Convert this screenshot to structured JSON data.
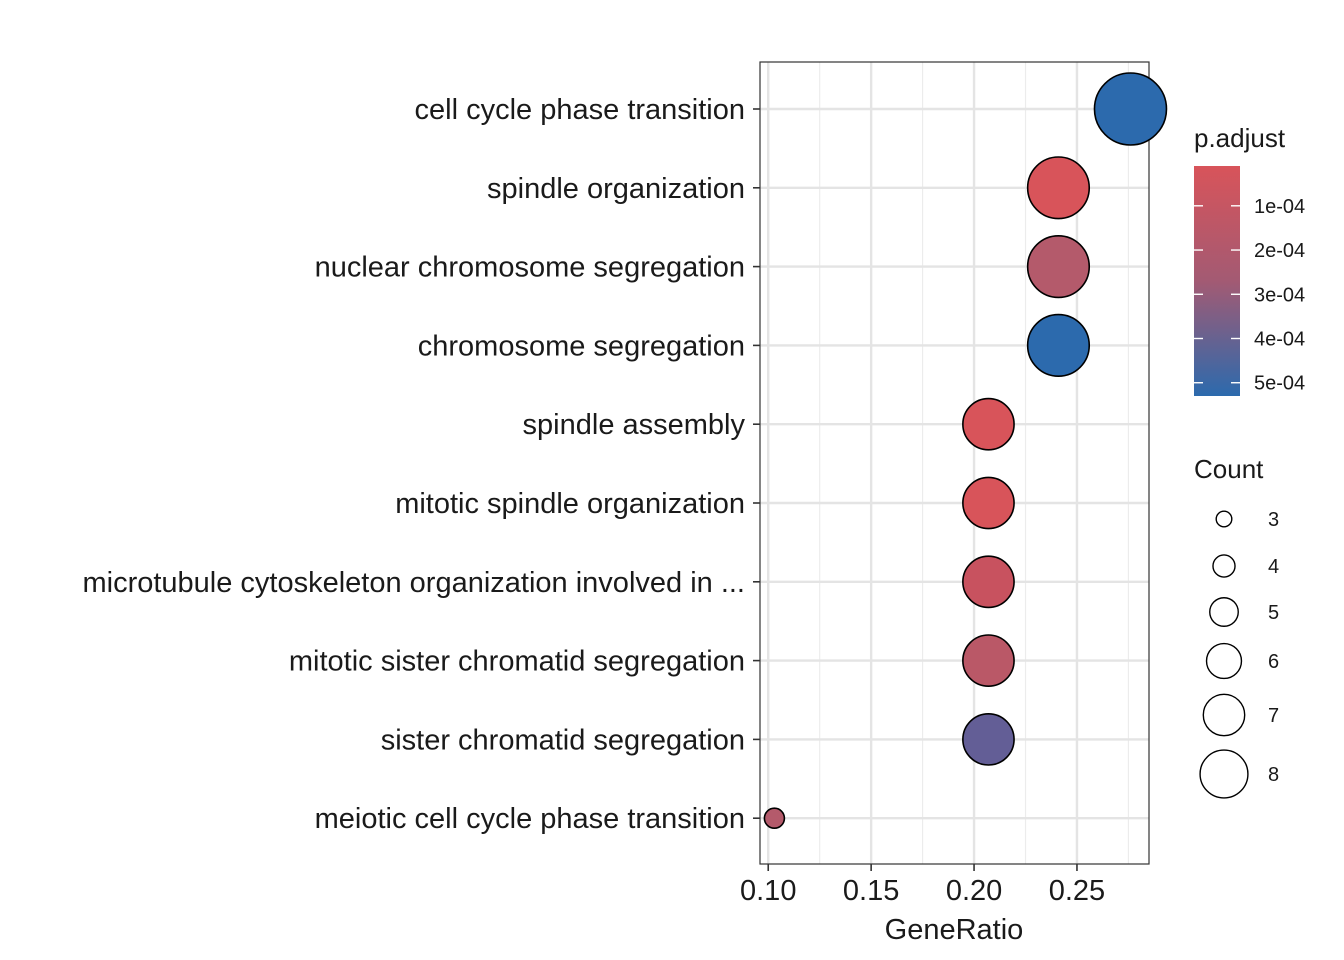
{
  "chart_data": {
    "type": "scatter",
    "title": "",
    "xlabel": "GeneRatio",
    "ylabel": "",
    "xlim": [
      0.096,
      0.285
    ],
    "xticks": [
      0.1,
      0.15,
      0.2,
      0.25
    ],
    "xtick_labels": [
      "0.10",
      "0.15",
      "0.20",
      "0.25"
    ],
    "grid": true,
    "legend_position": "right",
    "points": [
      {
        "term": "cell cycle phase transition",
        "gene_ratio": 0.276,
        "count": 8,
        "p_adjust": 0.00052,
        "color": "#2c6aad"
      },
      {
        "term": "spindle organization",
        "gene_ratio": 0.241,
        "count": 7,
        "p_adjust": 4e-05,
        "color": "#d8545a"
      },
      {
        "term": "nuclear chromosome segregation",
        "gene_ratio": 0.241,
        "count": 7,
        "p_adjust": 0.0002,
        "color": "#b45a6b"
      },
      {
        "term": "chromosome segregation",
        "gene_ratio": 0.241,
        "count": 7,
        "p_adjust": 0.00052,
        "color": "#2c6aad"
      },
      {
        "term": "spindle assembly",
        "gene_ratio": 0.207,
        "count": 6,
        "p_adjust": 4e-05,
        "color": "#d8545a"
      },
      {
        "term": "mitotic spindle organization",
        "gene_ratio": 0.207,
        "count": 6,
        "p_adjust": 5e-05,
        "color": "#d8545a"
      },
      {
        "term": "microtubule cytoskeleton organization involved in ...",
        "gene_ratio": 0.207,
        "count": 6,
        "p_adjust": 0.00012,
        "color": "#c8525f"
      },
      {
        "term": "mitotic sister chromatid segregation",
        "gene_ratio": 0.207,
        "count": 6,
        "p_adjust": 0.00017,
        "color": "#ba5867"
      },
      {
        "term": "sister chromatid segregation",
        "gene_ratio": 0.207,
        "count": 6,
        "p_adjust": 0.0004,
        "color": "#635e96"
      },
      {
        "term": "meiotic cell cycle phase transition",
        "gene_ratio": 0.103,
        "count": 3,
        "p_adjust": 0.0002,
        "color": "#b45a6b"
      }
    ],
    "color_legend": {
      "title": "p.adjust",
      "low_color": "#d8545a",
      "high_color": "#2c6aad",
      "range": [
        1e-05,
        0.00053
      ],
      "ticks": [
        0.0001,
        0.0002,
        0.0003,
        0.0004,
        0.0005
      ],
      "tick_labels": [
        "1e-04",
        "2e-04",
        "3e-04",
        "4e-04",
        "5e-04"
      ]
    },
    "size_legend": {
      "title": "Count",
      "values": [
        3,
        4,
        5,
        6,
        7,
        8
      ],
      "labels": [
        "3",
        "4",
        "5",
        "6",
        "7",
        "8"
      ]
    }
  }
}
